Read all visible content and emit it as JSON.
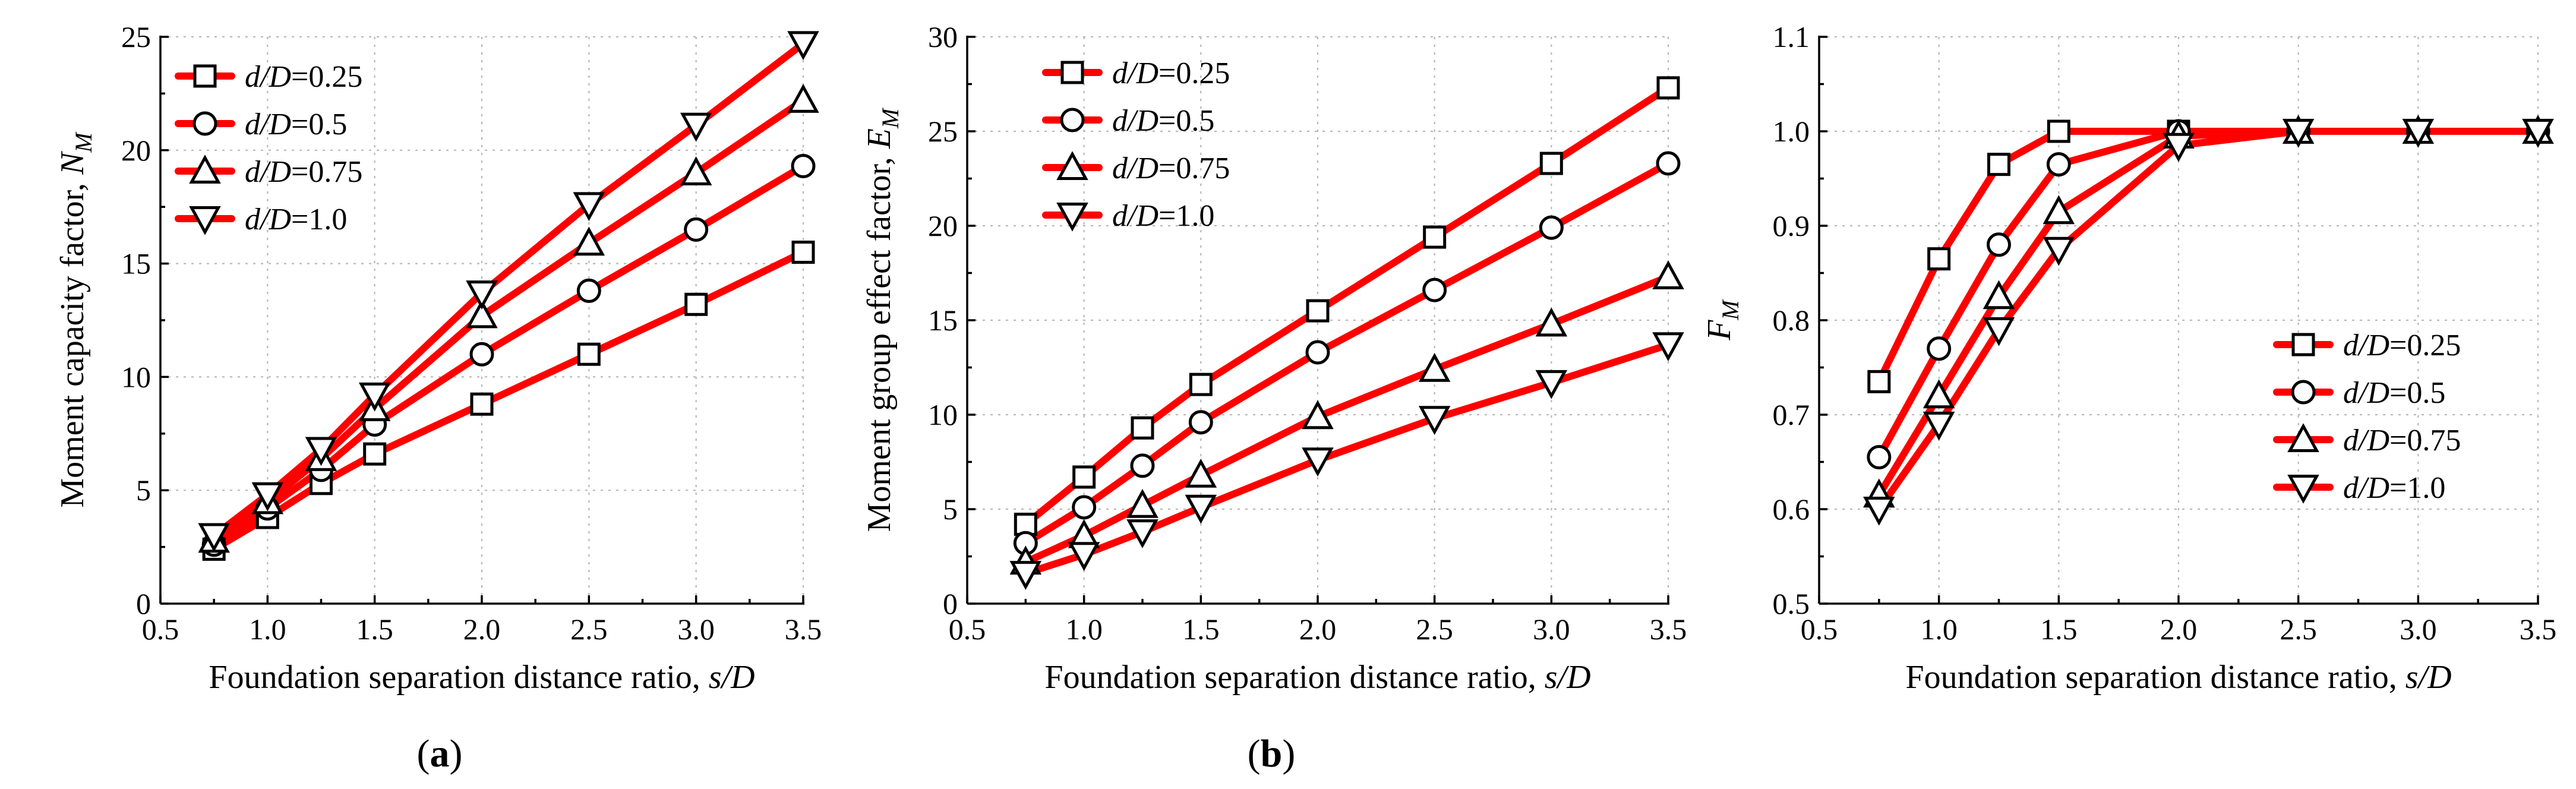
{
  "figure": {
    "series_color": "#ff0000",
    "marker_edge_color": "#000000",
    "grid_color": "#b8b8b8"
  },
  "chart_data": [
    {
      "type": "line",
      "panel_label": "(a)",
      "panel_letter": "a",
      "xlabel": "Foundation separation distance ratio, s/D",
      "xlabel_parts": {
        "main": "Foundation separation distance ratio, ",
        "italic": "s/D"
      },
      "ylabel": "Moment capacity factor, N_M",
      "ylabel_parts": {
        "main": "Moment capacity factor, ",
        "italic": "N",
        "sub": "M"
      },
      "xlim": [
        0.5,
        3.5
      ],
      "ylim": [
        0,
        25
      ],
      "xticks": [
        0.5,
        1.0,
        1.5,
        2.0,
        2.5,
        3.0,
        3.5
      ],
      "xtick_labels": [
        "0.5",
        "1.0",
        "1.5",
        "2.0",
        "2.5",
        "3.0",
        "3.5"
      ],
      "yticks": [
        0,
        5,
        10,
        15,
        20,
        25
      ],
      "ytick_labels": [
        "0",
        "5",
        "10",
        "15",
        "20",
        "25"
      ],
      "grid": true,
      "legend_position": "top-left",
      "x": [
        0.75,
        1.0,
        1.25,
        1.5,
        2.0,
        2.5,
        3.0,
        3.5
      ],
      "series": [
        {
          "name": "d/D=0.25",
          "name_italic": "d/D",
          "name_rest": "=0.25",
          "marker": "square",
          "values": [
            2.4,
            3.8,
            5.3,
            6.6,
            8.8,
            11.0,
            13.2,
            15.5
          ]
        },
        {
          "name": "d/D=0.5",
          "name_italic": "d/D",
          "name_rest": "=0.5",
          "marker": "circle",
          "values": [
            2.6,
            4.2,
            5.9,
            7.9,
            11.0,
            13.8,
            16.5,
            19.3
          ]
        },
        {
          "name": "d/D=0.75",
          "name_italic": "d/D",
          "name_rest": "=0.75",
          "marker": "triangle-up",
          "values": [
            2.8,
            4.5,
            6.4,
            8.6,
            12.7,
            15.9,
            19.0,
            22.2
          ]
        },
        {
          "name": "d/D=1.0",
          "name_italic": "d/D",
          "name_rest": "=1.0",
          "marker": "triangle-down",
          "values": [
            3.0,
            4.8,
            6.8,
            9.2,
            13.7,
            17.6,
            21.1,
            24.7
          ]
        }
      ]
    },
    {
      "type": "line",
      "panel_label": "(b)",
      "panel_letter": "b",
      "xlabel": "Foundation separation distance ratio, s/D",
      "xlabel_parts": {
        "main": "Foundation separation distance ratio, ",
        "italic": "s/D"
      },
      "ylabel": "Moment group effect factor, E_M",
      "ylabel_parts": {
        "main": "Moment group effect factor, ",
        "italic": "E",
        "sub": "M"
      },
      "xlim": [
        0.5,
        3.5
      ],
      "ylim": [
        0,
        30
      ],
      "xticks": [
        0.5,
        1.0,
        1.5,
        2.0,
        2.5,
        3.0,
        3.5
      ],
      "xtick_labels": [
        "0.5",
        "1.0",
        "1.5",
        "2.0",
        "2.5",
        "3.0",
        "3.5"
      ],
      "yticks": [
        0,
        5,
        10,
        15,
        20,
        25,
        30
      ],
      "ytick_labels": [
        "0",
        "5",
        "10",
        "15",
        "20",
        "25",
        "30"
      ],
      "grid": true,
      "legend_position": "top-left",
      "x": [
        0.75,
        1.0,
        1.25,
        1.5,
        2.0,
        2.5,
        3.0,
        3.5
      ],
      "series": [
        {
          "name": "d/D=0.25",
          "name_italic": "d/D",
          "name_rest": "=0.25",
          "marker": "square",
          "values": [
            4.2,
            6.7,
            9.3,
            11.6,
            15.5,
            19.4,
            23.3,
            27.3
          ]
        },
        {
          "name": "d/D=0.5",
          "name_italic": "d/D",
          "name_rest": "=0.5",
          "marker": "circle",
          "values": [
            3.2,
            5.1,
            7.3,
            9.6,
            13.3,
            16.6,
            19.9,
            23.3
          ]
        },
        {
          "name": "d/D=0.75",
          "name_italic": "d/D",
          "name_rest": "=0.75",
          "marker": "triangle-up",
          "values": [
            2.2,
            3.6,
            5.2,
            6.8,
            9.9,
            12.4,
            14.8,
            17.3
          ]
        },
        {
          "name": "d/D=1.0",
          "name_italic": "d/D",
          "name_rest": "=1.0",
          "marker": "triangle-down",
          "values": [
            1.6,
            2.6,
            3.8,
            5.1,
            7.6,
            9.8,
            11.7,
            13.7
          ]
        }
      ]
    },
    {
      "type": "line",
      "panel_label": "",
      "panel_letter": "",
      "xlabel": "Foundation separation distance ratio, s/D",
      "xlabel_parts": {
        "main": "Foundation separation distance ratio, ",
        "italic": "s/D"
      },
      "ylabel": "F_M",
      "ylabel_parts": {
        "main": "",
        "italic": "F",
        "sub": "M"
      },
      "xlim": [
        0.5,
        3.5
      ],
      "ylim": [
        0.5,
        1.1
      ],
      "xticks": [
        0.5,
        1.0,
        1.5,
        2.0,
        2.5,
        3.0,
        3.5
      ],
      "xtick_labels": [
        "0.5",
        "1.0",
        "1.5",
        "2.0",
        "2.5",
        "3.0",
        "3.5"
      ],
      "yticks": [
        0.5,
        0.6,
        0.7,
        0.8,
        0.9,
        1.0,
        1.1
      ],
      "ytick_labels": [
        "0.5",
        "0.6",
        "0.7",
        "0.8",
        "0.9",
        "1.0",
        "1.1"
      ],
      "grid": true,
      "legend_position": "center-right",
      "x": [
        0.75,
        1.0,
        1.25,
        1.5,
        2.0,
        2.5,
        3.0,
        3.5
      ],
      "series": [
        {
          "name": "d/D=0.25",
          "name_italic": "d/D",
          "name_rest": "=0.25",
          "marker": "square",
          "values": [
            0.735,
            0.865,
            0.965,
            1.0,
            1.0,
            1.0,
            1.0,
            1.0
          ]
        },
        {
          "name": "d/D=0.5",
          "name_italic": "d/D",
          "name_rest": "=0.5",
          "marker": "circle",
          "values": [
            0.655,
            0.77,
            0.88,
            0.965,
            1.0,
            1.0,
            1.0,
            1.0
          ]
        },
        {
          "name": "d/D=0.75",
          "name_italic": "d/D",
          "name_rest": "=0.75",
          "marker": "triangle-up",
          "values": [
            0.615,
            0.72,
            0.825,
            0.915,
            0.995,
            1.0,
            1.0,
            1.0
          ]
        },
        {
          "name": "d/D=1.0",
          "name_italic": "d/D",
          "name_rest": "=1.0",
          "marker": "triangle-down",
          "values": [
            0.6,
            0.69,
            0.79,
            0.875,
            0.985,
            1.0,
            1.0,
            1.0
          ]
        }
      ]
    }
  ]
}
